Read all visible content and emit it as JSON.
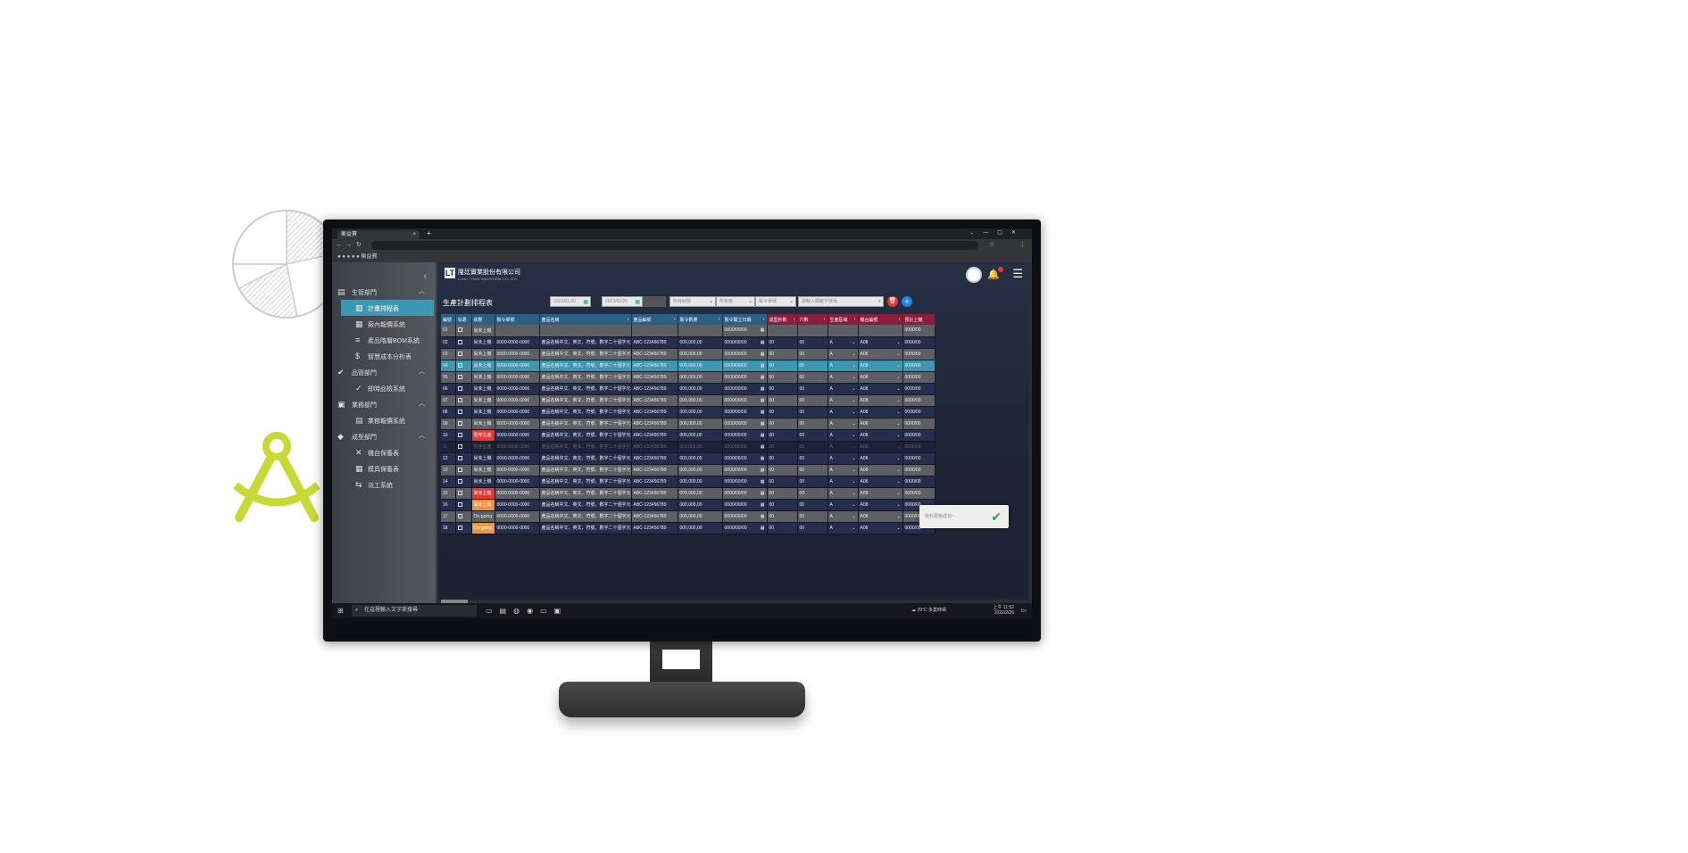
{
  "browser": {
    "tab_title": "衡益寶",
    "tab_close": "×",
    "new_tab": "+",
    "bookmark_label": "衡益寶"
  },
  "sidebar": {
    "collapse_icon": "‹",
    "departments": [
      {
        "label": "生管部門",
        "icon": "factory-icon"
      },
      {
        "label": "品管部門",
        "icon": "checks-icon"
      },
      {
        "label": "業務部門",
        "icon": "briefcase-icon"
      },
      {
        "label": "成型部門",
        "icon": "shapes-icon"
      }
    ],
    "items": [
      {
        "label": "計畫排程表",
        "active": true
      },
      {
        "label": "廠內報價系統",
        "active": false
      },
      {
        "label": "產品階層BOM系統",
        "active": false
      },
      {
        "label": "智慧成本分析表",
        "active": false
      },
      {
        "label": "即時品檢系統",
        "active": false
      },
      {
        "label": "業務報價系統",
        "active": false
      },
      {
        "label": "機台保養表",
        "active": false
      },
      {
        "label": "模具保養表",
        "active": false
      },
      {
        "label": "派工系統",
        "active": false
      }
    ]
  },
  "header": {
    "company_cn": "隆廷實業股份有限公司",
    "company_en": "LONG TOWN INDUSTRIAL CO, LTD.",
    "page_title": "生產計劃排程表"
  },
  "filters": {
    "date_from": "2022/01/20",
    "date_to": "2022/02/26",
    "select1": "所有狀態",
    "select2": "所有廠",
    "select3": "製令單號",
    "search_placeholder": "請輸入關鍵字搜尋"
  },
  "table": {
    "columns": [
      "編號",
      "勾選",
      "狀態",
      "製令單號",
      "產品名稱",
      "產品編號",
      "製令數量",
      "製令開立日期",
      "成型秒數",
      "穴數",
      "生產區域",
      "機台編號",
      "預計上機"
    ],
    "rows": [
      {
        "no": "01",
        "status": "尚未上機",
        "order": "",
        "name": "",
        "code": "",
        "qty": "",
        "date": "0000/00/00",
        "sec": "",
        "cav": "",
        "area": "",
        "machine": "",
        "plan": "0000/00"
      },
      {
        "no": "02",
        "status": "尚未上機",
        "order": "0000-0000-0000",
        "name": "產品名稱中文、英文、符號、數字二十個字元",
        "code": "ABC-123456789",
        "qty": "000,000,00",
        "date": "0000/00/00",
        "sec": "00",
        "cav": "00",
        "area": "A",
        "machine": "A08",
        "plan": "0000/00"
      },
      {
        "no": "03",
        "status": "尚未上機",
        "order": "0000-0000-0000",
        "name": "產品名稱中文、英文、符號、數字二十個字元",
        "code": "ABC-123456789",
        "qty": "000,000,00",
        "date": "0000/00/00",
        "sec": "00",
        "cav": "00",
        "area": "A",
        "machine": "A08",
        "plan": "0000/00"
      },
      {
        "no": "04",
        "status": "尚未上機",
        "order": "0000-0000-0000",
        "name": "產品名稱中文、英文、符號、數字二十個字元",
        "code": "ABC-123456789",
        "qty": "000,000,00",
        "date": "0000/00/00",
        "sec": "00",
        "cav": "00",
        "area": "A",
        "machine": "A08",
        "plan": "0000/00"
      },
      {
        "no": "05",
        "status": "尚未上機",
        "order": "0000-0000-0000",
        "name": "產品名稱中文、英文、符號、數字二十個字元",
        "code": "ABC-123456789",
        "qty": "000,000,00",
        "date": "0000/00/00",
        "sec": "00",
        "cav": "00",
        "area": "A",
        "machine": "A08",
        "plan": "0000/00"
      },
      {
        "no": "06",
        "status": "尚未上機",
        "order": "0000-0000-0000",
        "name": "產品名稱中文、英文、符號、數字二十個字元",
        "code": "ABC-123456789",
        "qty": "000,000,00",
        "date": "0000/00/00",
        "sec": "00",
        "cav": "00",
        "area": "A",
        "machine": "A08",
        "plan": "0000/00"
      },
      {
        "no": "07",
        "status": "尚未上機",
        "order": "0000-0000-0000",
        "name": "產品名稱中文、英文、符號、數字二十個字元",
        "code": "ABC-123456789",
        "qty": "000,000,00",
        "date": "0000/00/00",
        "sec": "00",
        "cav": "00",
        "area": "A",
        "machine": "A08",
        "plan": "0000/00"
      },
      {
        "no": "08",
        "status": "尚未上機",
        "order": "0000-0000-0000",
        "name": "產品名稱中文、英文、符號、數字二十個字元",
        "code": "ABC-123456789",
        "qty": "000,000,00",
        "date": "0000/00/00",
        "sec": "00",
        "cav": "00",
        "area": "A",
        "machine": "A08",
        "plan": "0000/00"
      },
      {
        "no": "09",
        "status": "尚未上機",
        "order": "0000-0000-0000",
        "name": "產品名稱中文、英文、符號、數字二十個字元",
        "code": "ABC-123456789",
        "qty": "000,000,00",
        "date": "0000/00/00",
        "sec": "00",
        "cav": "00",
        "area": "A",
        "machine": "A08",
        "plan": "0000/00"
      },
      {
        "no": "10",
        "status": "暫停生產",
        "order": "0000-0000-0000",
        "name": "產品名稱中文、英文、符號、數字二十個字元",
        "code": "ABC-123456789",
        "qty": "000,000,00",
        "date": "0000/00/00",
        "sec": "00",
        "cav": "00",
        "area": "A",
        "machine": "A08",
        "plan": "0000/00"
      },
      {
        "no": "11",
        "status": "暫停生產",
        "order": "0000-0000-0000",
        "name": "產品名稱中文、英文、符號、數字二十個字元",
        "code": "ABC-123456789",
        "qty": "000,000,00",
        "date": "0000/00/00",
        "sec": "00",
        "cav": "00",
        "area": "A",
        "machine": "A08",
        "plan": "0000/00"
      },
      {
        "no": "12",
        "status": "尚未上機",
        "order": "0000-0000-0000",
        "name": "產品名稱中文、英文、符號、數字二十個字元",
        "code": "ABC-123456789",
        "qty": "000,000,00",
        "date": "0000/00/00",
        "sec": "00",
        "cav": "00",
        "area": "A",
        "machine": "A08",
        "plan": "0000/00"
      },
      {
        "no": "13",
        "status": "尚未上機",
        "order": "0000-0000-0000",
        "name": "產品名稱中文、英文、符號、數字二十個字元",
        "code": "ABC-123456789",
        "qty": "000,000,00",
        "date": "0000/00/00",
        "sec": "00",
        "cav": "00",
        "area": "A",
        "machine": "A08",
        "plan": "0000/00"
      },
      {
        "no": "14",
        "status": "尚未上機",
        "order": "0000-0000-0000",
        "name": "產品名稱中文、英文、符號、數字二十個字元",
        "code": "ABC-123456789",
        "qty": "000,000,00",
        "date": "0000/00/00",
        "sec": "00",
        "cav": "00",
        "area": "A",
        "machine": "A08",
        "plan": "0000/00"
      },
      {
        "no": "15",
        "status": "尚未上機",
        "order": "0000-0000-0000",
        "name": "產品名稱中文、英文、符號、數字二十個字元",
        "code": "ABC-123456789",
        "qty": "000,000,00",
        "date": "0000/00/00",
        "sec": "00",
        "cav": "00",
        "area": "A",
        "machine": "A08",
        "plan": "0000/00"
      },
      {
        "no": "16",
        "status": "尚未上機",
        "order": "0000-0000-0000",
        "name": "產品名稱中文、英文、符號、數字二十個字元",
        "code": "ABC-123456789",
        "qty": "000,000,00",
        "date": "0000/00/00",
        "sec": "00",
        "cav": "00",
        "area": "A",
        "machine": "A08",
        "plan": "0000/00"
      },
      {
        "no": "17",
        "status": "On-going",
        "order": "0000-0000-0000",
        "name": "產品名稱中文、英文、符號、數字二十個字元",
        "code": "ABC-123456789",
        "qty": "000,000,00",
        "date": "0000/00/00",
        "sec": "00",
        "cav": "00",
        "area": "A",
        "machine": "A08",
        "plan": "0000/00"
      },
      {
        "no": "18",
        "status": "On-going",
        "order": "0000-0000-0000",
        "name": "產品名稱中文、英文、符號、數字二十個字元",
        "code": "ABC-123456789",
        "qty": "000,000,00",
        "date": "0000/00/00",
        "sec": "00",
        "cav": "00",
        "area": "A",
        "machine": "A08",
        "plan": "0000/00"
      }
    ],
    "selected_row": "04",
    "status_colors": {
      "10": "red",
      "15": "red",
      "16": "orange",
      "18": "orange"
    }
  },
  "toast": {
    "message": "資料更新成功~"
  },
  "taskbar": {
    "search_placeholder": "在這裡輸入文字來搜尋",
    "weather": "29°C 多雲時晴",
    "time": "上午 11:52",
    "date": "2022/2/26"
  },
  "colors": {
    "accent": "#3e97b2",
    "header_blue": "#2a5f86",
    "header_red": "#8b1e3f",
    "status_red": "#e53935",
    "status_orange": "#f0963a",
    "compass": "#c8d936"
  }
}
